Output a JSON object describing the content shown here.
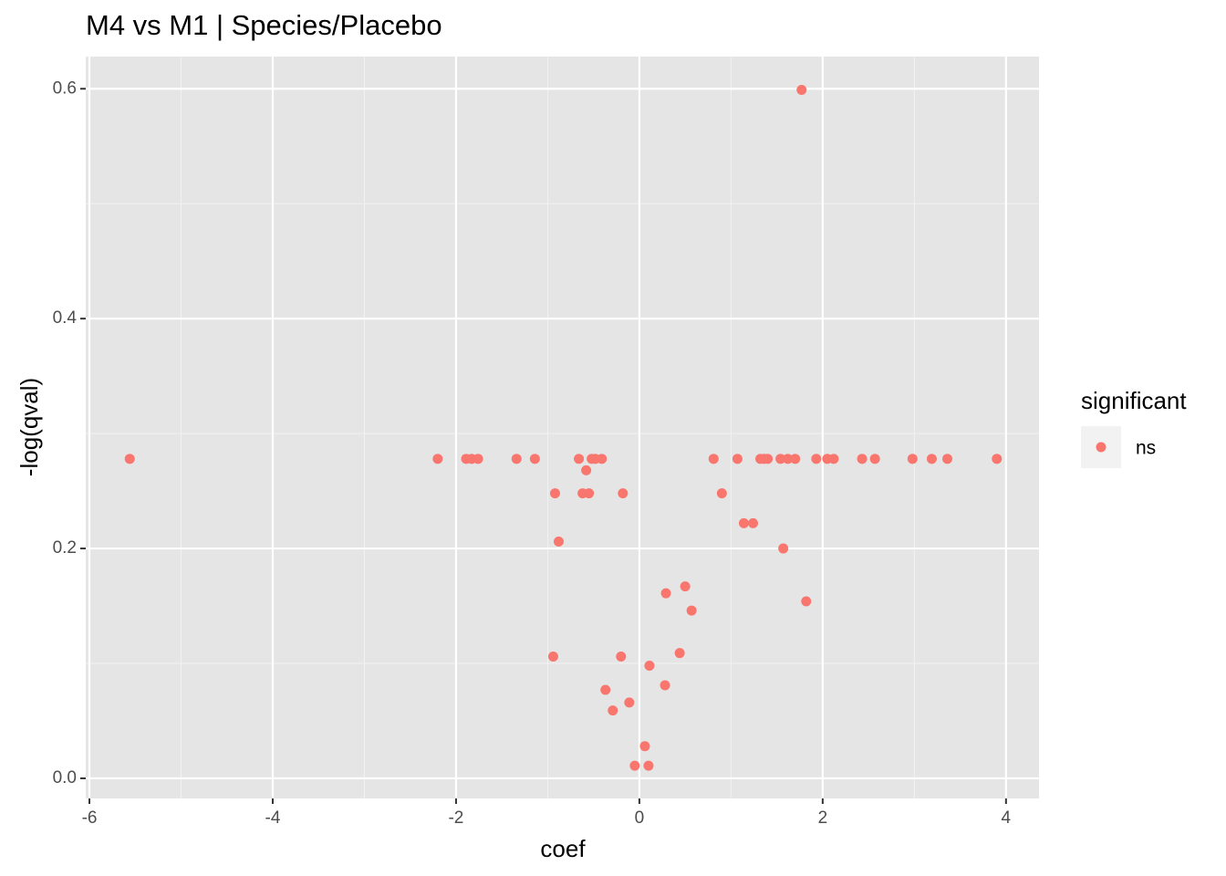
{
  "chart_data": {
    "type": "scatter",
    "title": "M4 vs M1 | Species/Placebo",
    "x_label": "coef",
    "y_label": "-log(qval)",
    "legend_title": "significant",
    "legend_position": "right",
    "grid": true,
    "x_minor_breaks": [
      -5,
      -3,
      -1,
      1,
      3
    ],
    "y_minor_breaks": [
      0.1,
      0.3,
      0.5
    ],
    "xlim": [
      -6.04,
      4.36
    ],
    "ylim": [
      -0.0175,
      0.628
    ],
    "xticks": [
      -6,
      -4,
      -2,
      0,
      2,
      4
    ],
    "yticks": [
      {
        "value": 0,
        "label": "0.0"
      },
      0.2,
      0.4,
      0.6
    ],
    "series": [
      {
        "name": "ns",
        "color": "#F8766D",
        "x": [
          -5.56,
          -2.2,
          -1.89,
          -1.83,
          -1.76,
          -1.34,
          -1.14,
          -0.66,
          -0.52,
          -0.48,
          -0.41,
          0.81,
          1.07,
          1.32,
          1.36,
          1.4,
          1.54,
          1.62,
          1.7,
          1.93,
          2.05,
          2.12,
          2.43,
          2.57,
          2.98,
          3.19,
          3.36,
          3.9,
          -0.58,
          -0.92,
          -0.62,
          -0.55,
          -0.18,
          0.9,
          -0.88,
          1.14,
          1.24,
          1.57,
          1.82,
          0.5,
          0.57,
          0.29,
          -0.94,
          -0.2,
          0.11,
          0.44,
          0.28,
          -0.37,
          -0.11,
          -0.29,
          0.06,
          -0.05,
          0.1,
          1.77
        ],
        "values": [
          0.278,
          0.278,
          0.278,
          0.278,
          0.278,
          0.278,
          0.278,
          0.278,
          0.278,
          0.278,
          0.278,
          0.278,
          0.278,
          0.278,
          0.278,
          0.278,
          0.278,
          0.278,
          0.278,
          0.278,
          0.278,
          0.278,
          0.278,
          0.278,
          0.278,
          0.278,
          0.278,
          0.278,
          0.268,
          0.248,
          0.248,
          0.248,
          0.248,
          0.248,
          0.206,
          0.222,
          0.222,
          0.2,
          0.154,
          0.167,
          0.146,
          0.161,
          0.106,
          0.106,
          0.098,
          0.109,
          0.081,
          0.077,
          0.066,
          0.059,
          0.028,
          0.011,
          0.011,
          0.599
        ]
      }
    ]
  }
}
